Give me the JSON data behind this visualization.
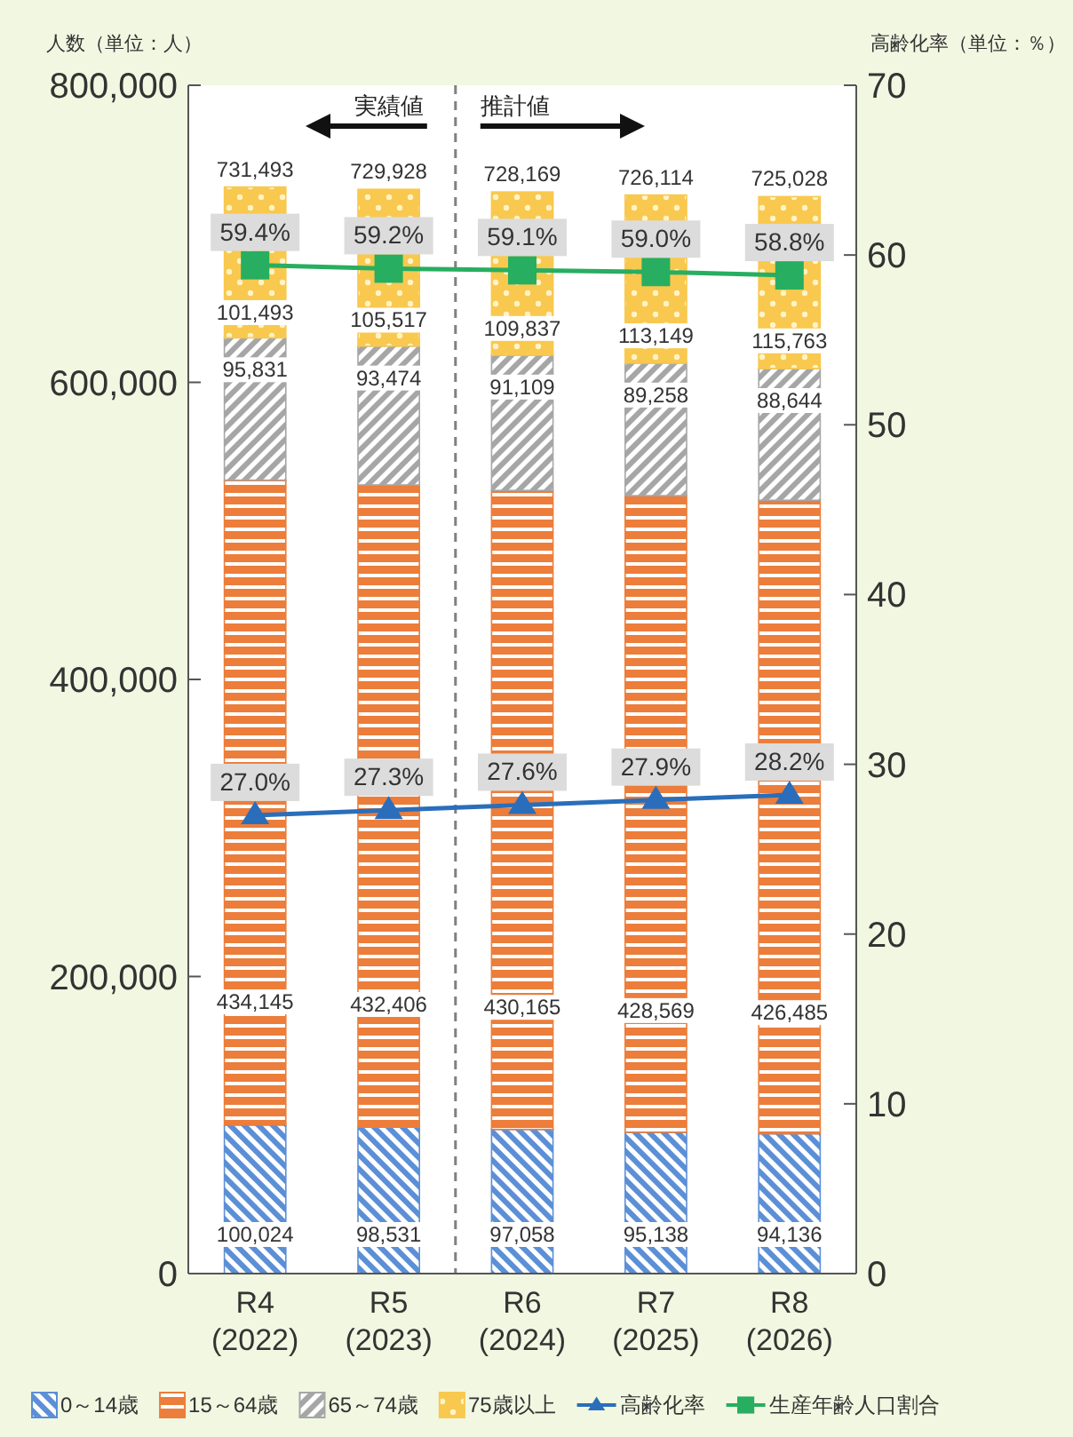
{
  "chart_data": {
    "type": "bar",
    "stacked": true,
    "ylabel": "人数（単位：人）",
    "y2label": "高齢化率（単位：％）",
    "categories": [
      "R4\n(2022)",
      "R5\n(2023)",
      "R6\n(2024)",
      "R7\n(2025)",
      "R8\n(2026)"
    ],
    "series": [
      {
        "name": "0～14歳",
        "color": "#5b8fd6",
        "values": [
          100024,
          98531,
          97058,
          95138,
          94136
        ],
        "value_labels": [
          "100,024",
          "98,531",
          "97,058",
          "95,138",
          "94,136"
        ]
      },
      {
        "name": "15～64歳",
        "color": "#ec7d3a",
        "values": [
          434145,
          432406,
          430165,
          428569,
          426485
        ],
        "value_labels": [
          "434,145",
          "432,406",
          "430,165",
          "428,569",
          "426,485"
        ]
      },
      {
        "name": "65～74歳",
        "color": "#a6a6a6",
        "values": [
          95831,
          93474,
          91109,
          89258,
          88644
        ],
        "value_labels": [
          "95,831",
          "93,474",
          "91,109",
          "89,258",
          "88,644"
        ]
      },
      {
        "name": "75歳以上",
        "color": "#f9c84e",
        "values": [
          101493,
          105517,
          109837,
          113149,
          115763
        ],
        "value_labels": [
          "101,493",
          "105,517",
          "109,837",
          "113,149",
          "115,763"
        ]
      },
      {
        "name": "高齢化率",
        "type": "line",
        "axis": "y2",
        "marker": "triangle",
        "color": "#2a6ebb",
        "values": [
          27.0,
          27.3,
          27.6,
          27.9,
          28.2
        ],
        "value_labels": [
          "27.0%",
          "27.3%",
          "27.6%",
          "27.9%",
          "28.2%"
        ]
      },
      {
        "name": "生産年齢人口割合",
        "type": "line",
        "axis": "y2",
        "marker": "square",
        "color": "#27ae60",
        "values": [
          59.4,
          59.2,
          59.1,
          59.0,
          58.8
        ],
        "value_labels": [
          "59.4%",
          "59.2%",
          "59.1%",
          "59.0%",
          "58.8%"
        ]
      }
    ],
    "totals": [
      "731,493",
      "729,928",
      "728,169",
      "726,114",
      "725,028"
    ],
    "ylim": [
      0,
      800000
    ],
    "yticks": [
      0,
      {
        "value": 200000,
        "label": "200,000"
      },
      {
        "value": 400000,
        "label": "400,000"
      },
      {
        "value": 600000,
        "label": "600,000"
      },
      {
        "value": 800000,
        "label": "800,000"
      }
    ],
    "y2lim": [
      0,
      70
    ],
    "y2ticks": [
      0,
      10,
      20,
      30,
      40,
      50,
      60,
      70
    ],
    "annotations": [
      "実績値",
      "推計値"
    ],
    "legend": "bottom",
    "grid": false
  }
}
